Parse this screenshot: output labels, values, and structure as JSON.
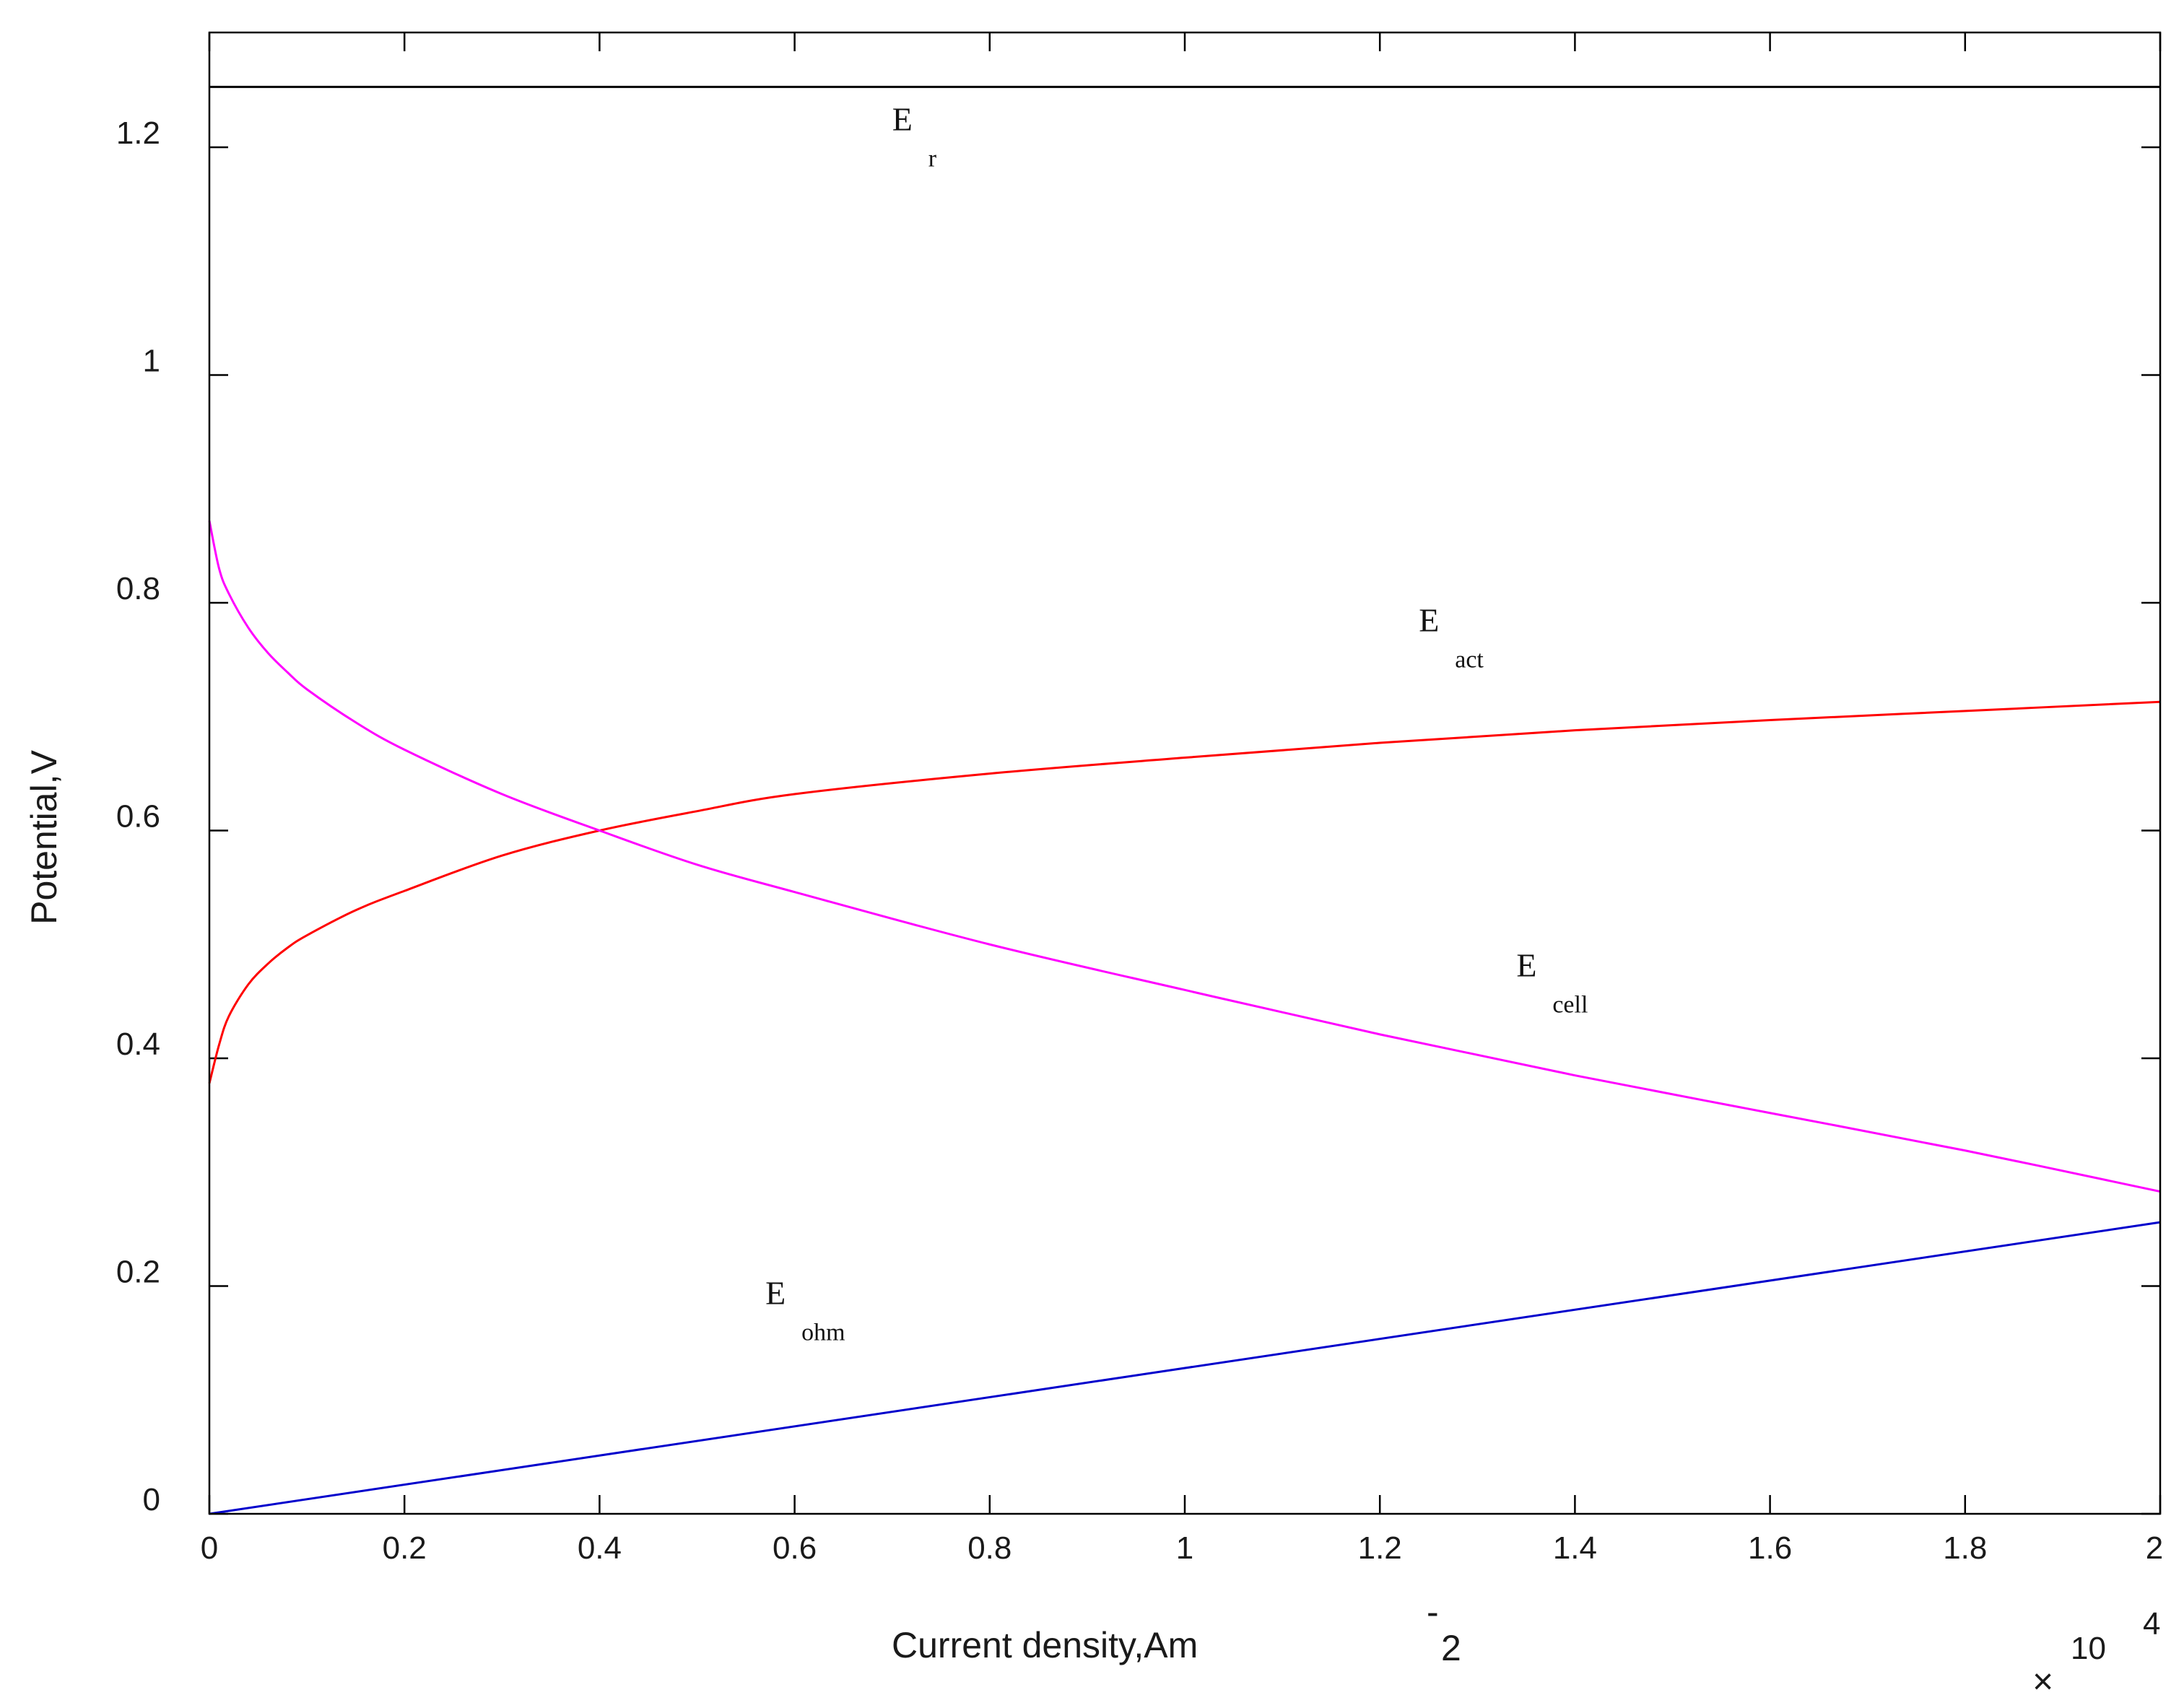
{
  "chart_data": {
    "type": "line",
    "xlabel": "Current density,Am",
    "xlabel_superscript": "-2",
    "ylabel": "Potential,V",
    "x_multiplier": {
      "symbol": "×",
      "base": "10",
      "exponent": "4"
    },
    "xlim": [
      0,
      2
    ],
    "ylim": [
      0,
      1.25
    ],
    "x_ticks": [
      0,
      0.2,
      0.4,
      0.6,
      0.8,
      1,
      1.2,
      1.4,
      1.6,
      1.8,
      2
    ],
    "x_tick_labels": [
      "0",
      "0.2",
      "0.4",
      "0.6",
      "0.8",
      "1",
      "1.2",
      "1.4",
      "1.6",
      "1.8",
      "2"
    ],
    "y_ticks": [
      0,
      0.2,
      0.4,
      0.6,
      0.8,
      1,
      1.2
    ],
    "y_tick_labels": [
      "0",
      "0.2",
      "0.4",
      "0.6",
      "0.8",
      "1",
      "1.2"
    ],
    "grid": false,
    "series": [
      {
        "name": "E_r",
        "label_main": "E",
        "label_sub": "r",
        "color": "#000000",
        "x": [
          0,
          2
        ],
        "y": [
          1.253,
          1.253
        ]
      },
      {
        "name": "E_act",
        "label_main": "E",
        "label_sub": "act",
        "color": "#ff0000",
        "x": [
          0,
          0.01,
          0.02,
          0.04,
          0.06,
          0.08,
          0.1,
          0.15,
          0.2,
          0.3,
          0.4,
          0.5,
          0.6,
          0.8,
          1.0,
          1.2,
          1.4,
          1.6,
          1.8,
          2.0
        ],
        "y": [
          0.378,
          0.412,
          0.437,
          0.465,
          0.483,
          0.497,
          0.508,
          0.53,
          0.547,
          0.578,
          0.6,
          0.617,
          0.632,
          0.65,
          0.664,
          0.677,
          0.688,
          0.697,
          0.705,
          0.713
        ]
      },
      {
        "name": "E_cell",
        "label_main": "E",
        "label_sub": "cell",
        "color": "#ff00ff",
        "x": [
          0,
          0.01,
          0.02,
          0.04,
          0.06,
          0.08,
          0.1,
          0.15,
          0.2,
          0.3,
          0.4,
          0.5,
          0.6,
          0.8,
          1.0,
          1.2,
          1.4,
          1.6,
          1.8,
          2.0
        ],
        "y": [
          0.872,
          0.83,
          0.808,
          0.778,
          0.756,
          0.739,
          0.724,
          0.695,
          0.671,
          0.632,
          0.6,
          0.57,
          0.546,
          0.5,
          0.46,
          0.421,
          0.385,
          0.352,
          0.319,
          0.283
        ]
      },
      {
        "name": "E_ohm",
        "label_main": "E",
        "label_sub": "ohm",
        "color": "#0000cc",
        "x": [
          0,
          2
        ],
        "y": [
          0,
          0.256
        ]
      }
    ],
    "annotations": [
      {
        "series": "E_r",
        "x": 0.7,
        "y": 1.215
      },
      {
        "series": "E_act",
        "x": 1.24,
        "y": 0.775
      },
      {
        "series": "E_cell",
        "x": 1.34,
        "y": 0.472
      },
      {
        "series": "E_ohm",
        "x": 0.57,
        "y": 0.184
      }
    ]
  }
}
